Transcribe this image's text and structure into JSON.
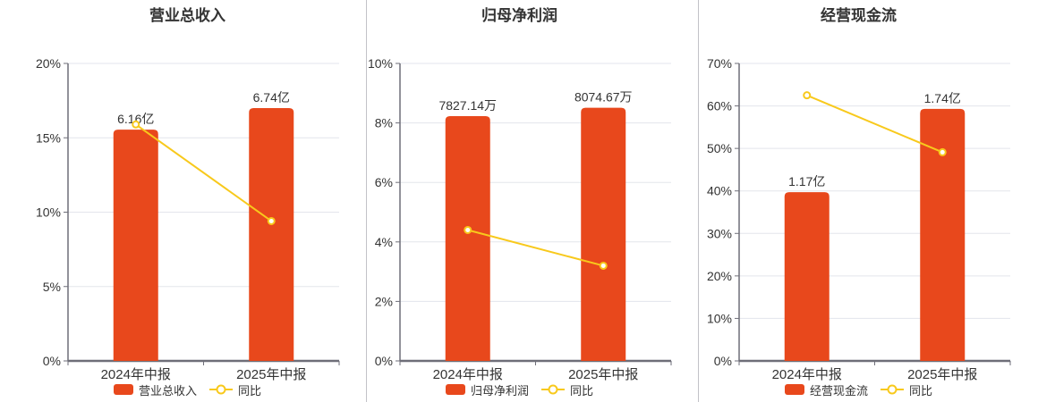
{
  "colors": {
    "bar": "#E8481C",
    "line": "#F8C91C",
    "marker_fill": "#FFFFFF",
    "grid": "#E3E5EC",
    "axis": "#6E6E78",
    "divider": "#C2C2C8",
    "text": "#333333",
    "background": "#FFFFFF"
  },
  "chart_data": [
    {
      "type": "bar",
      "title": "营业总收入",
      "categories": [
        "2024年中报",
        "2025年中报"
      ],
      "bars": {
        "name": "营业总收入",
        "value_labels": [
          "6.16亿",
          "6.74亿"
        ],
        "top_pct_of_axis": [
          15.55,
          17.0
        ]
      },
      "line": {
        "name": "同比",
        "values_pct": [
          15.9,
          9.4
        ]
      },
      "y_axis": {
        "min": 0,
        "max": 20,
        "step": 5,
        "tick_labels": [
          "0%",
          "5%",
          "10%",
          "15%",
          "20%"
        ]
      },
      "legend": {
        "bar_label": "营业总收入",
        "line_label": "同比",
        "position": "bottom"
      },
      "grid": true
    },
    {
      "type": "bar",
      "title": "归母净利润",
      "categories": [
        "2024年中报",
        "2025年中报"
      ],
      "bars": {
        "name": "归母净利润",
        "value_labels": [
          "7827.14万",
          "8074.67万"
        ],
        "top_pct_of_axis": [
          8.23,
          8.51
        ]
      },
      "line": {
        "name": "同比",
        "values_pct": [
          4.4,
          3.2
        ]
      },
      "y_axis": {
        "min": 0,
        "max": 10,
        "step": 2,
        "tick_labels": [
          "0%",
          "2%",
          "4%",
          "6%",
          "8%",
          "10%"
        ]
      },
      "legend": {
        "bar_label": "归母净利润",
        "line_label": "同比",
        "position": "bottom"
      },
      "grid": true
    },
    {
      "type": "bar",
      "title": "经营现金流",
      "categories": [
        "2024年中报",
        "2025年中报"
      ],
      "bars": {
        "name": "经营现金流",
        "value_labels": [
          "1.17亿",
          "1.74亿"
        ],
        "top_pct_of_axis": [
          39.7,
          59.3
        ]
      },
      "line": {
        "name": "同比",
        "values_pct": [
          62.5,
          49.1
        ]
      },
      "y_axis": {
        "min": 0,
        "max": 70,
        "step": 10,
        "tick_labels": [
          "0%",
          "10%",
          "20%",
          "30%",
          "40%",
          "50%",
          "60%",
          "70%"
        ]
      },
      "legend": {
        "bar_label": "经营现金流",
        "line_label": "同比",
        "position": "bottom"
      },
      "grid": true
    }
  ]
}
